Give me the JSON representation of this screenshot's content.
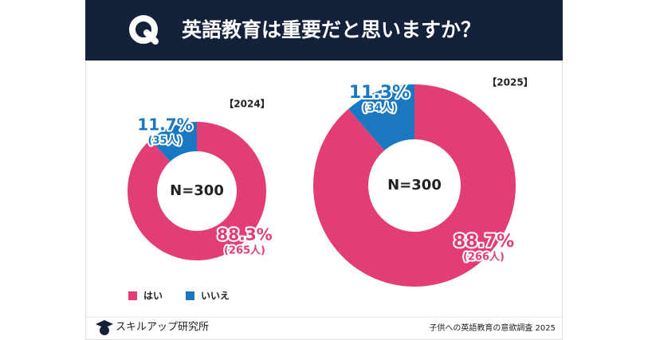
{
  "header": {
    "title": "英語教育は重要だと思いますか？"
  },
  "chart_data": [
    {
      "type": "pie",
      "subtitle": "【2024】",
      "center_label": "N=300",
      "categories": [
        "はい",
        "いいえ"
      ],
      "values": [
        88.3,
        11.7
      ],
      "value_labels": [
        "88.3%",
        "11.7%"
      ],
      "counts": [
        265,
        35
      ],
      "count_labels": [
        "(265人)",
        "(35人)"
      ],
      "colors": [
        "#e23d74",
        "#1a78c2"
      ]
    },
    {
      "type": "pie",
      "subtitle": "【2025】",
      "center_label": "N=300",
      "categories": [
        "はい",
        "いいえ"
      ],
      "values": [
        88.7,
        11.3
      ],
      "value_labels": [
        "88.7%",
        "11.3%"
      ],
      "counts": [
        266,
        34
      ],
      "count_labels": [
        "(266人)",
        "(34人)"
      ],
      "colors": [
        "#e23d74",
        "#1a78c2"
      ]
    }
  ],
  "footer": {
    "brand": "スキルアップ研究所",
    "source": "子供への英語教育の意欲調査 2025"
  }
}
